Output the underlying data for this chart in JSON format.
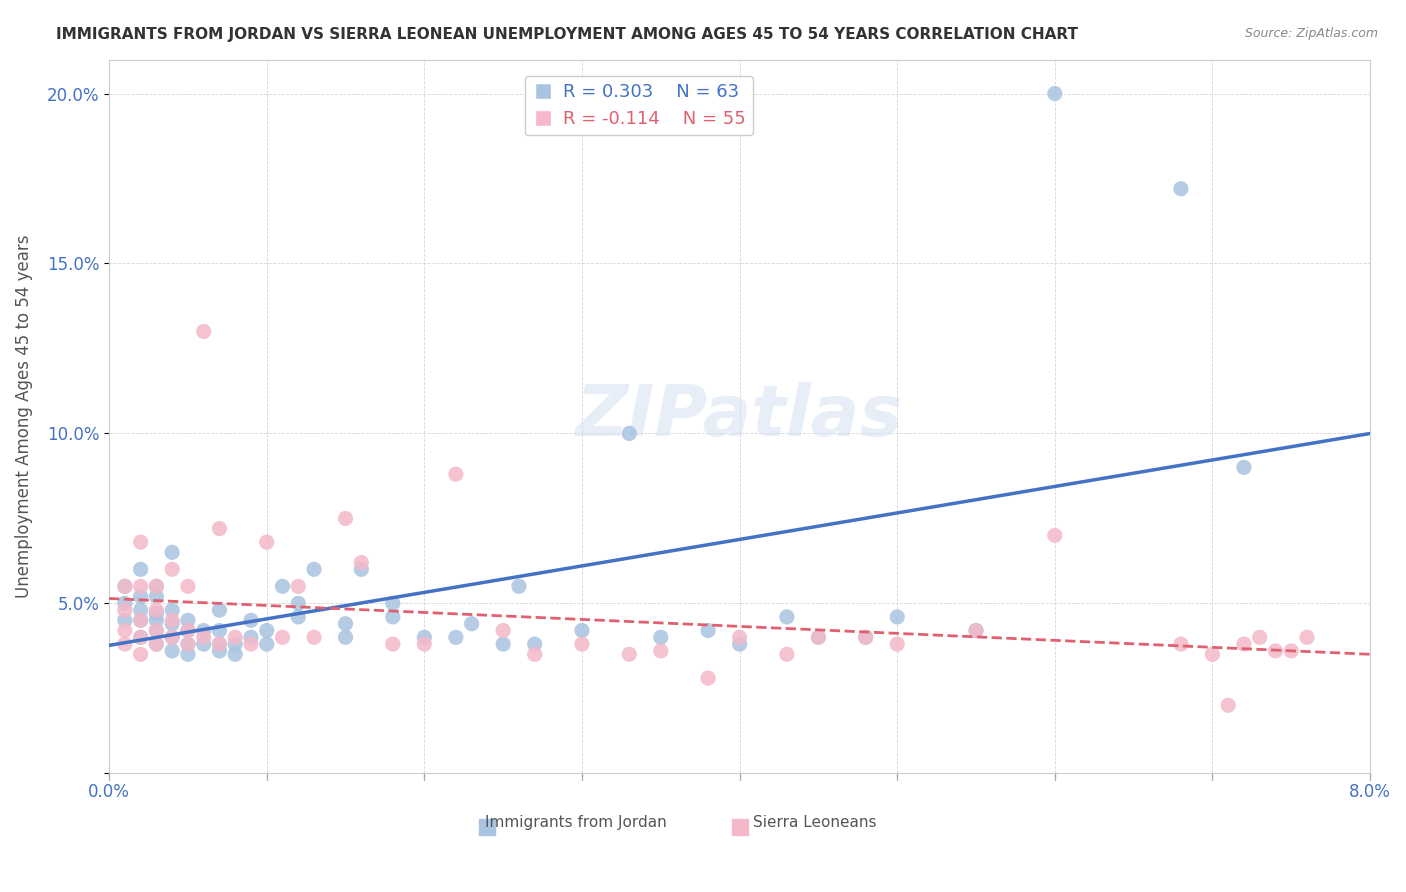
{
  "title": "IMMIGRANTS FROM JORDAN VS SIERRA LEONEAN UNEMPLOYMENT AMONG AGES 45 TO 54 YEARS CORRELATION CHART",
  "source": "Source: ZipAtlas.com",
  "xlabel": "",
  "ylabel": "Unemployment Among Ages 45 to 54 years",
  "xmin": 0.0,
  "xmax": 0.08,
  "ymin": 0.0,
  "ymax": 0.21,
  "xticks": [
    0.0,
    0.01,
    0.02,
    0.03,
    0.04,
    0.05,
    0.06,
    0.07,
    0.08
  ],
  "xtick_labels": [
    "0.0%",
    "",
    "",
    "",
    "",
    "",
    "",
    "",
    "8.0%"
  ],
  "yticks": [
    0.0,
    0.05,
    0.1,
    0.15,
    0.2
  ],
  "ytick_labels": [
    "",
    "5.0%",
    "10.0%",
    "15.0%",
    "20.0%"
  ],
  "jordan_color": "#a8c4e0",
  "jordan_color_line": "#4472c4",
  "sierra_color": "#f4b8c8",
  "sierra_color_line": "#e06070",
  "jordan_R": 0.303,
  "jordan_N": 63,
  "sierra_R": -0.114,
  "sierra_N": 55,
  "jordan_x": [
    0.001,
    0.001,
    0.001,
    0.002,
    0.002,
    0.002,
    0.002,
    0.002,
    0.003,
    0.003,
    0.003,
    0.003,
    0.003,
    0.003,
    0.004,
    0.004,
    0.004,
    0.004,
    0.004,
    0.005,
    0.005,
    0.005,
    0.005,
    0.006,
    0.006,
    0.007,
    0.007,
    0.007,
    0.007,
    0.008,
    0.008,
    0.009,
    0.009,
    0.01,
    0.01,
    0.011,
    0.012,
    0.012,
    0.013,
    0.015,
    0.015,
    0.016,
    0.018,
    0.018,
    0.02,
    0.022,
    0.023,
    0.025,
    0.026,
    0.027,
    0.03,
    0.033,
    0.035,
    0.038,
    0.04,
    0.043,
    0.045,
    0.048,
    0.05,
    0.055,
    0.06,
    0.068,
    0.072
  ],
  "jordan_y": [
    0.045,
    0.05,
    0.055,
    0.04,
    0.045,
    0.048,
    0.052,
    0.06,
    0.038,
    0.042,
    0.045,
    0.047,
    0.052,
    0.055,
    0.036,
    0.04,
    0.044,
    0.048,
    0.065,
    0.035,
    0.038,
    0.042,
    0.045,
    0.038,
    0.042,
    0.036,
    0.038,
    0.042,
    0.048,
    0.035,
    0.038,
    0.04,
    0.045,
    0.038,
    0.042,
    0.055,
    0.046,
    0.05,
    0.06,
    0.04,
    0.044,
    0.06,
    0.046,
    0.05,
    0.04,
    0.04,
    0.044,
    0.038,
    0.055,
    0.038,
    0.042,
    0.1,
    0.04,
    0.042,
    0.038,
    0.046,
    0.04,
    0.04,
    0.046,
    0.042,
    0.2,
    0.172,
    0.09
  ],
  "sierra_x": [
    0.001,
    0.001,
    0.001,
    0.001,
    0.002,
    0.002,
    0.002,
    0.002,
    0.002,
    0.003,
    0.003,
    0.003,
    0.003,
    0.004,
    0.004,
    0.004,
    0.005,
    0.005,
    0.005,
    0.006,
    0.006,
    0.007,
    0.007,
    0.008,
    0.009,
    0.01,
    0.011,
    0.012,
    0.013,
    0.015,
    0.016,
    0.018,
    0.02,
    0.022,
    0.025,
    0.027,
    0.03,
    0.033,
    0.035,
    0.038,
    0.04,
    0.043,
    0.045,
    0.048,
    0.05,
    0.055,
    0.06,
    0.068,
    0.07,
    0.071,
    0.072,
    0.073,
    0.074,
    0.075,
    0.076
  ],
  "sierra_y": [
    0.038,
    0.042,
    0.048,
    0.055,
    0.035,
    0.04,
    0.045,
    0.055,
    0.068,
    0.038,
    0.042,
    0.048,
    0.055,
    0.04,
    0.045,
    0.06,
    0.038,
    0.042,
    0.055,
    0.04,
    0.13,
    0.038,
    0.072,
    0.04,
    0.038,
    0.068,
    0.04,
    0.055,
    0.04,
    0.075,
    0.062,
    0.038,
    0.038,
    0.088,
    0.042,
    0.035,
    0.038,
    0.035,
    0.036,
    0.028,
    0.04,
    0.035,
    0.04,
    0.04,
    0.038,
    0.042,
    0.07,
    0.038,
    0.035,
    0.02,
    0.038,
    0.04,
    0.036,
    0.036,
    0.04
  ],
  "watermark": "ZIPatlas",
  "legend_jordan_label": "Immigrants from Jordan",
  "legend_sierra_label": "Sierra Leoneans"
}
